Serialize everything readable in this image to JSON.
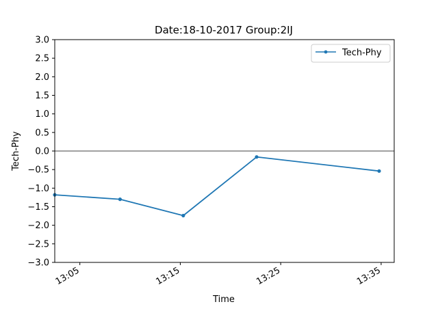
{
  "chart_data": {
    "type": "line",
    "title": "Date:18-10-2017 Group:2IJ",
    "xlabel": "Time",
    "ylabel": "Tech-Phy",
    "x_ticks": [
      "13:05",
      "13:15",
      "13:25",
      "13:35"
    ],
    "x_tick_minutes": [
      785,
      795,
      805,
      815
    ],
    "xlim_minutes": [
      782.5,
      816.3
    ],
    "ylim": [
      -3.0,
      3.0
    ],
    "y_ticks": [
      -3.0,
      -2.5,
      -2.0,
      -1.5,
      -1.0,
      -0.5,
      0.0,
      0.5,
      1.0,
      1.5,
      2.0,
      2.5,
      3.0
    ],
    "y_tick_labels": [
      "−3.0",
      "−2.5",
      "−2.0",
      "−1.5",
      "−1.0",
      "−0.5",
      "0.0",
      "0.5",
      "1.0",
      "1.5",
      "2.0",
      "2.5",
      "3.0"
    ],
    "baseline": 0.0,
    "grid": false,
    "legend_position": "top-right",
    "series": [
      {
        "name": "Tech-Phy",
        "color": "#1f77b4",
        "marker": "dot",
        "x": [
          "13:02",
          "13:08",
          "13:15",
          "13:22",
          "13:35"
        ],
        "x_minutes": [
          782.5,
          789.0,
          795.3,
          802.6,
          814.8
        ],
        "values": [
          -1.18,
          -1.3,
          -1.74,
          -0.16,
          -0.54
        ]
      }
    ]
  }
}
